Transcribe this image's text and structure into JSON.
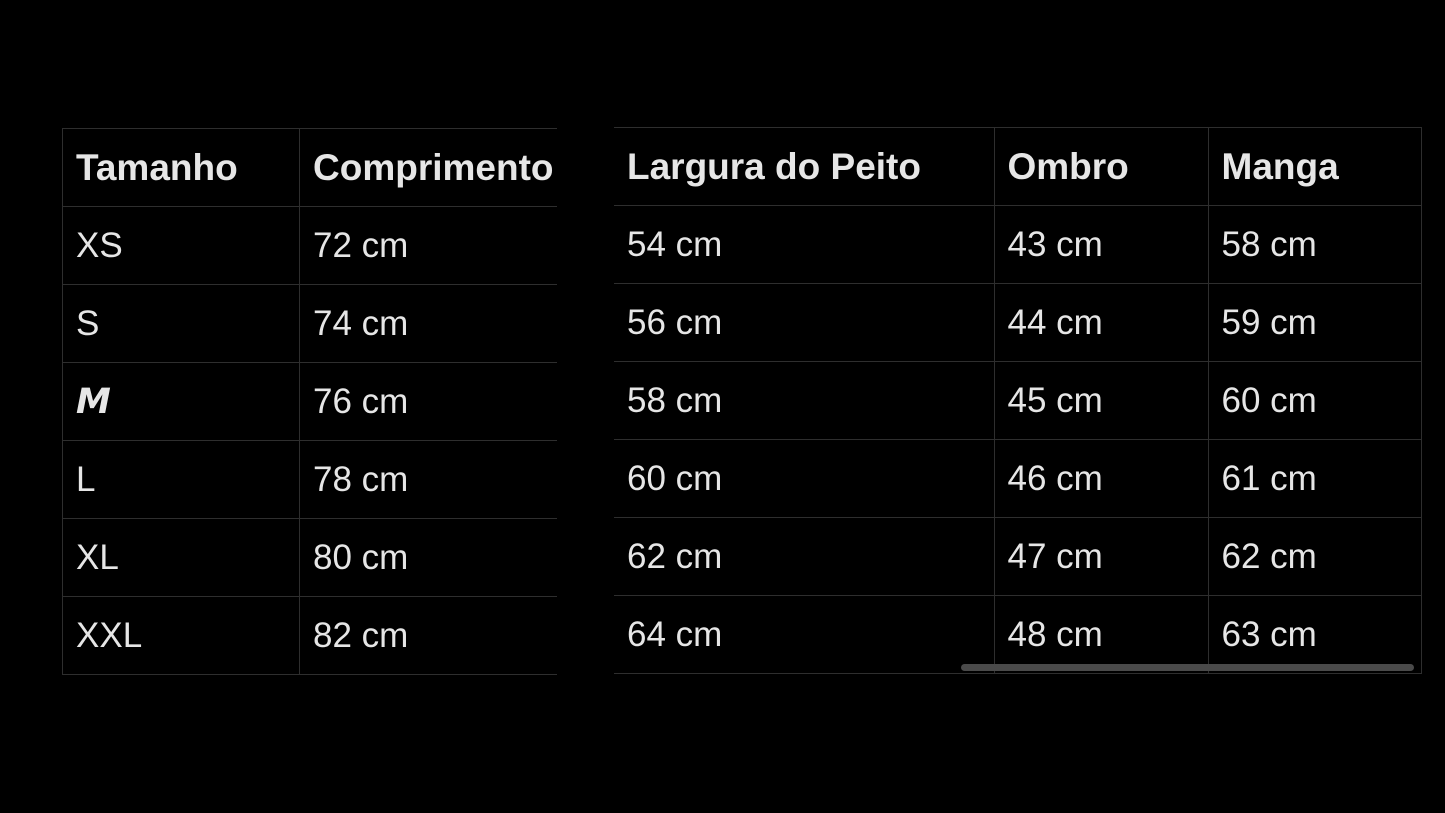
{
  "left_table": {
    "headers": [
      "Tamanho",
      "Comprimento"
    ],
    "rows": [
      [
        "XS",
        "72 cm"
      ],
      [
        "S",
        "74 cm"
      ],
      [
        "M",
        "76 cm"
      ],
      [
        "L",
        "78 cm"
      ],
      [
        "XL",
        "80 cm"
      ],
      [
        "XXL",
        "82 cm"
      ]
    ]
  },
  "right_table": {
    "headers": [
      "Largura do Peito",
      "Ombro",
      "Manga"
    ],
    "rows": [
      [
        "54 cm",
        "43 cm",
        "58 cm"
      ],
      [
        "56 cm",
        "44 cm",
        "59 cm"
      ],
      [
        "58 cm",
        "45 cm",
        "60 cm"
      ],
      [
        "60 cm",
        "46 cm",
        "61 cm"
      ],
      [
        "62 cm",
        "47 cm",
        "62 cm"
      ],
      [
        "64 cm",
        "48 cm",
        "63 cm"
      ]
    ]
  },
  "colors": {
    "background": "#000000",
    "text": "#e6e6e6",
    "grid": "#2e2e2e",
    "scrollbar": "#4a4a4a"
  }
}
